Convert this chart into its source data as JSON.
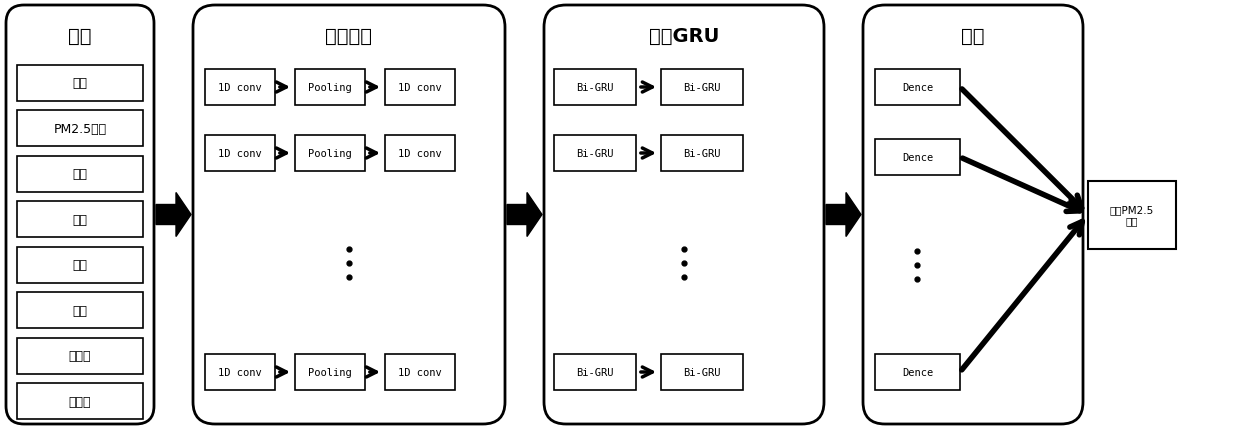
{
  "fig_width": 12.4,
  "fig_height": 4.31,
  "bg_color": "#ffffff",
  "input_title": "输入",
  "input_items": [
    "露点",
    "PM2.5浓度",
    "温度",
    "气压",
    "风向",
    "风速",
    "降雪量",
    "降雨量"
  ],
  "conv_title": "一维卷积",
  "gru_title": "双向GRU",
  "output_title": "输出",
  "output_items": [
    "Dence",
    "Dence",
    "Dence"
  ],
  "output_label": "预测PM2.5\n浓度",
  "section_title_fontsize": 14,
  "label_fontsize": 9,
  "inner_fontsize": 8
}
